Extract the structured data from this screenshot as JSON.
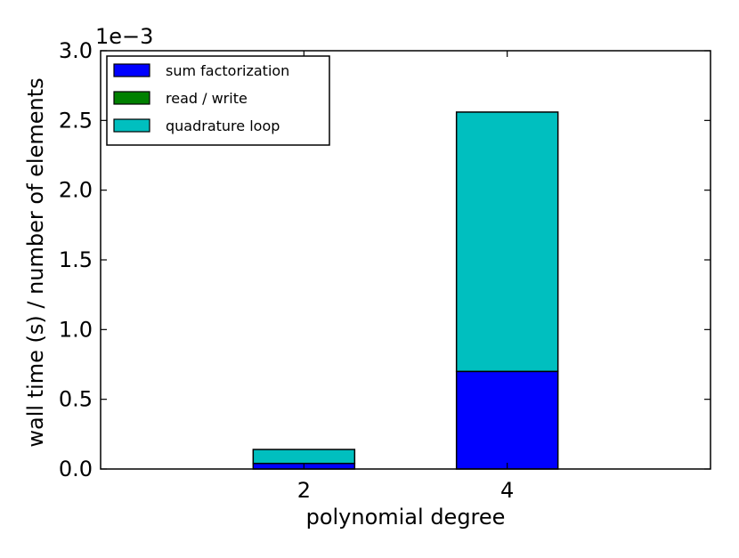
{
  "chart_data": {
    "type": "bar",
    "stacked": true,
    "categories": [
      "2",
      "4"
    ],
    "series": [
      {
        "name": "sum factorization",
        "values": [
          4e-05,
          0.0007
        ],
        "color": "#0000ff"
      },
      {
        "name": "read / write",
        "values": [
          0.0,
          0.0
        ],
        "color": "#008000"
      },
      {
        "name": "quadrature loop",
        "values": [
          0.0001,
          0.00186
        ],
        "color": "#00bfbf"
      }
    ],
    "xlabel": "polynomial degree",
    "ylabel": "wall time (s) / number of elements",
    "ylim": [
      0,
      0.003
    ],
    "y_offset_label": "1e−3",
    "yticks": [
      0.0,
      0.0005,
      0.001,
      0.0015,
      0.002,
      0.0025,
      0.003
    ],
    "ytick_labels": [
      "0.0",
      "0.5",
      "1.0",
      "1.5",
      "2.0",
      "2.5",
      "3.0"
    ],
    "xlim": [
      0,
      3
    ],
    "category_positions": [
      1,
      2
    ],
    "grid": false,
    "legend_position": "top-left"
  }
}
